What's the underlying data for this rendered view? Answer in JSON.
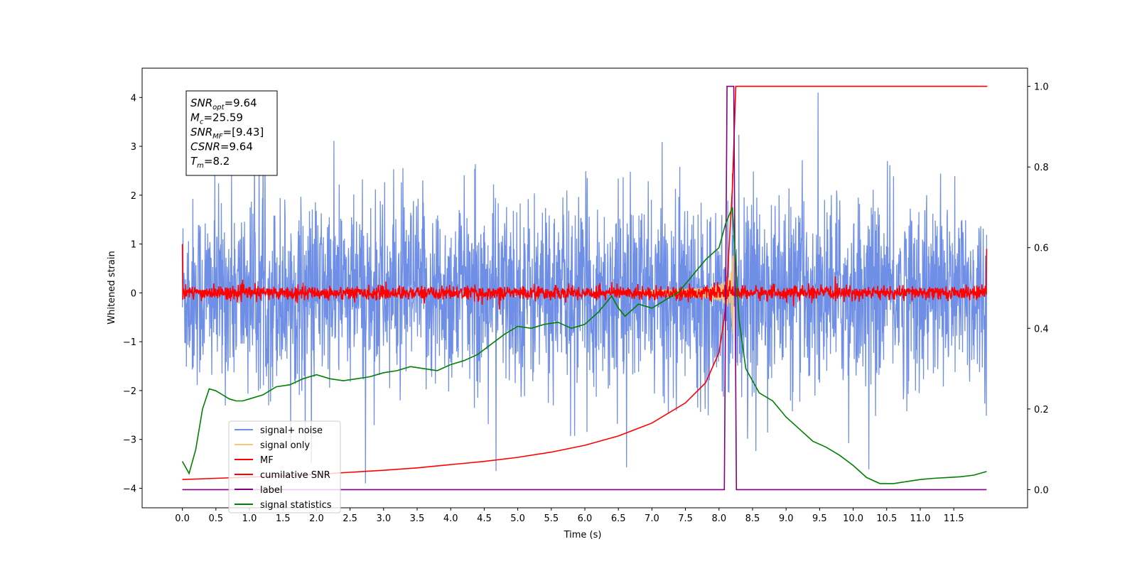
{
  "chart_data": {
    "type": "line",
    "xlabel": "Time (s)",
    "ylabel": "Whitened strain",
    "xlim": [
      -0.6,
      12.6
    ],
    "ylim": [
      -4.4,
      4.6
    ],
    "y2lim": [
      -0.045,
      1.045
    ],
    "x_ticks": [
      "0.0",
      "0.5",
      "1.0",
      "1.5",
      "2.0",
      "2.5",
      "3.0",
      "3.5",
      "4.0",
      "4.5",
      "5.0",
      "5.5",
      "6.0",
      "6.5",
      "7.0",
      "7.5",
      "8.0",
      "8.5",
      "9.0",
      "9.5",
      "10.0",
      "10.5",
      "11.0",
      "11.5"
    ],
    "y_ticks": [
      "4",
      "3",
      "2",
      "1",
      "0",
      "−1",
      "−2",
      "−3",
      "−4"
    ],
    "y2_ticks": [
      "1.0",
      "0.8",
      "0.6",
      "0.4",
      "0.2",
      "0.0"
    ],
    "legend_position": "lower-left",
    "stats_box": [
      {
        "label": "SNR",
        "sub": "opt",
        "value": "=9.64"
      },
      {
        "label": "M",
        "sub": "c",
        "value": "=25.59"
      },
      {
        "label": "SNR",
        "sub": "MF",
        "value": "=[9.43]"
      },
      {
        "label": "CSNR",
        "sub": "",
        "value": "=9.64"
      },
      {
        "label": "T",
        "sub": "m",
        "value": "=8.2"
      }
    ],
    "series": [
      {
        "name": "signal+ noise",
        "color": "#6f8fe6",
        "axis": "left",
        "description": "noise-like whitened strain, mostly within -2.5..2.5 with spikes to about +/-4",
        "x_range": [
          0,
          11.99
        ],
        "amplitude_envelope": [
          -3.9,
          4.1
        ]
      },
      {
        "name": "signal only",
        "color": "#f6c67a",
        "axis": "left",
        "description": "chirp growing to about +/-1.3 at merger near t=8.2",
        "peak_time": 8.2,
        "peak_amplitude": 1.3
      },
      {
        "name": "MF",
        "color": "#ff0000",
        "axis": "left",
        "description": "matched filter output near 0, band about +/-0.2",
        "x_range": [
          0,
          11.99
        ],
        "start_value": 1.0,
        "end_value": 0.9
      },
      {
        "name": "cumilative SNR",
        "color": "#ff0000",
        "axis": "right",
        "x": [
          0.0,
          0.5,
          1.0,
          1.5,
          2.0,
          2.5,
          3.0,
          3.5,
          4.0,
          4.5,
          5.0,
          5.5,
          6.0,
          6.5,
          7.0,
          7.5,
          7.8,
          8.0,
          8.1,
          8.2,
          8.25,
          12.0
        ],
        "values": [
          0.025,
          0.028,
          0.031,
          0.034,
          0.038,
          0.043,
          0.048,
          0.054,
          0.062,
          0.07,
          0.08,
          0.093,
          0.11,
          0.133,
          0.165,
          0.215,
          0.265,
          0.34,
          0.45,
          0.75,
          1.0,
          1.0
        ]
      },
      {
        "name": "label",
        "color": "#800080",
        "axis": "right",
        "x": [
          0.0,
          8.08,
          8.12,
          8.22,
          8.26,
          11.99
        ],
        "values": [
          0.0,
          0.0,
          1.0,
          1.0,
          0.0,
          0.0
        ]
      },
      {
        "name": "signal statistics",
        "color": "#008000",
        "axis": "right",
        "x": [
          0.0,
          0.1,
          0.2,
          0.3,
          0.4,
          0.5,
          0.6,
          0.7,
          0.8,
          0.9,
          1.0,
          1.2,
          1.4,
          1.6,
          1.8,
          2.0,
          2.2,
          2.4,
          2.6,
          2.8,
          3.0,
          3.2,
          3.4,
          3.6,
          3.8,
          4.0,
          4.2,
          4.4,
          4.6,
          4.8,
          5.0,
          5.2,
          5.4,
          5.6,
          5.8,
          6.0,
          6.2,
          6.4,
          6.5,
          6.6,
          6.8,
          7.0,
          7.2,
          7.4,
          7.6,
          7.8,
          8.0,
          8.1,
          8.2,
          8.3,
          8.4,
          8.6,
          8.8,
          9.0,
          9.2,
          9.4,
          9.6,
          9.8,
          10.0,
          10.2,
          10.4,
          10.6,
          10.8,
          11.0,
          11.2,
          11.4,
          11.6,
          11.8,
          11.99
        ],
        "values": [
          0.07,
          0.04,
          0.1,
          0.2,
          0.25,
          0.245,
          0.235,
          0.225,
          0.22,
          0.22,
          0.225,
          0.235,
          0.255,
          0.26,
          0.275,
          0.285,
          0.275,
          0.27,
          0.275,
          0.28,
          0.29,
          0.295,
          0.305,
          0.3,
          0.295,
          0.31,
          0.32,
          0.335,
          0.36,
          0.385,
          0.405,
          0.4,
          0.41,
          0.415,
          0.4,
          0.41,
          0.44,
          0.48,
          0.45,
          0.43,
          0.46,
          0.45,
          0.47,
          0.49,
          0.53,
          0.57,
          0.6,
          0.66,
          0.7,
          0.42,
          0.3,
          0.24,
          0.22,
          0.18,
          0.15,
          0.12,
          0.105,
          0.085,
          0.06,
          0.03,
          0.015,
          0.015,
          0.02,
          0.025,
          0.028,
          0.03,
          0.032,
          0.036,
          0.045
        ]
      }
    ]
  }
}
